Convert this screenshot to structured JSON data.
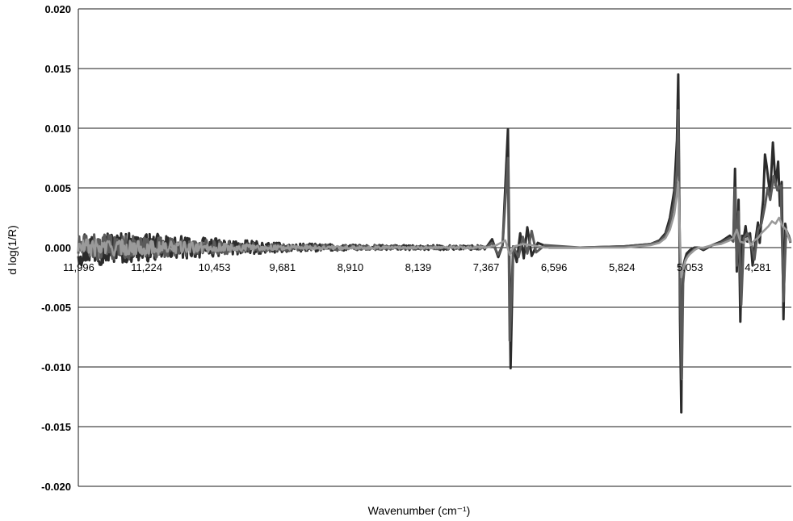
{
  "chart_data": {
    "type": "line",
    "title": "",
    "xlabel": "Wavenumber (cm⁻¹)",
    "ylabel": "d log(1/R)",
    "xlim": [
      12000,
      3900
    ],
    "ylim": [
      -0.02,
      0.02
    ],
    "x_reversed": true,
    "x_ticks": [
      "11,996",
      "11,224",
      "10,453",
      "9,681",
      "8,910",
      "8,139",
      "7,367",
      "6,596",
      "5,824",
      "5,053",
      "4,281"
    ],
    "x_tick_values": [
      11996,
      11224,
      10453,
      9681,
      8910,
      8139,
      7367,
      6596,
      5824,
      5053,
      4281
    ],
    "y_ticks": [
      "0.020",
      "0.015",
      "0.010",
      "0.005",
      "0.000",
      "-0.005",
      "-0.010",
      "-0.015",
      "-0.020"
    ],
    "y_tick_values": [
      0.02,
      0.015,
      0.01,
      0.005,
      0.0,
      -0.005,
      -0.01,
      -0.015,
      -0.02
    ],
    "grid": true,
    "legend": "none",
    "series": [
      {
        "color": "#2b2b2b",
        "noise_envelope": [
          [
            12000,
            0.0016
          ],
          [
            11200,
            0.0012
          ],
          [
            10500,
            0.0008
          ],
          [
            9700,
            0.0004
          ],
          [
            8900,
            0.00025
          ],
          [
            8100,
            0.0002
          ],
          [
            7400,
            0.0002
          ],
          [
            7000,
            0.0003
          ],
          [
            6600,
            0.0004
          ],
          [
            5800,
            0.0002
          ],
          [
            5400,
            0.0002
          ]
        ],
        "x": [
          7367,
          7300,
          7230,
          7180,
          7120,
          7090,
          7060,
          7020,
          6980,
          6940,
          6900,
          6850,
          6780,
          6650,
          6300,
          5800,
          5500,
          5400,
          5330,
          5280,
          5230,
          5200,
          5185,
          5175,
          5165,
          5150,
          5140,
          5125,
          5110,
          5090,
          5050,
          5000,
          4950,
          4900,
          4800,
          4700,
          4600,
          4560,
          4540,
          4520,
          4500,
          4480,
          4460,
          4440,
          4420,
          4400,
          4370,
          4340,
          4300,
          4280,
          4260,
          4240,
          4220,
          4200,
          4180,
          4160,
          4140,
          4110,
          4080,
          4050,
          4030,
          4010,
          3990,
          3970,
          3950,
          3930,
          3910
        ],
        "y": [
          0.0,
          0.0007,
          -0.0008,
          0.0002,
          0.0099,
          -0.0101,
          0.0001,
          -0.0012,
          0.0012,
          -0.0009,
          0.0017,
          -0.0007,
          0.0004,
          0.0,
          0.0,
          0.0001,
          0.0003,
          0.0006,
          0.0012,
          0.0025,
          0.0048,
          0.009,
          0.0145,
          0.006,
          -0.006,
          -0.0138,
          -0.004,
          -0.0015,
          -0.001,
          -0.0005,
          -0.0002,
          0.0,
          0.0,
          -0.0002,
          0.0002,
          0.0005,
          0.001,
          0.0006,
          0.0066,
          -0.002,
          0.004,
          -0.0062,
          0.001,
          0.0008,
          0.0018,
          0.0005,
          0.0012,
          -0.0015,
          0.001,
          0.0021,
          0.0004,
          0.0025,
          0.004,
          0.0078,
          0.0068,
          0.0055,
          0.0045,
          0.0088,
          0.0052,
          0.0072,
          0.0035,
          0.0055,
          -0.006,
          0.002,
          0.001,
          0.001,
          0.0005
        ]
      },
      {
        "color": "#5a5a5a",
        "noise_envelope": [
          [
            12000,
            0.0012
          ],
          [
            11200,
            0.0009
          ],
          [
            10500,
            0.0006
          ],
          [
            9700,
            0.0003
          ],
          [
            8900,
            0.0002
          ],
          [
            8100,
            0.00015
          ],
          [
            7400,
            0.00015
          ],
          [
            7000,
            0.00025
          ],
          [
            6600,
            0.0003
          ],
          [
            5800,
            0.00015
          ],
          [
            5400,
            0.00015
          ]
        ],
        "x": [
          7367,
          7300,
          7230,
          7180,
          7120,
          7100,
          7060,
          7000,
          6950,
          6900,
          6850,
          6800,
          6700,
          6300,
          5800,
          5500,
          5400,
          5330,
          5280,
          5230,
          5200,
          5185,
          5175,
          5160,
          5145,
          5130,
          5110,
          5080,
          5040,
          5000,
          4950,
          4900,
          4800,
          4700,
          4600,
          4560,
          4540,
          4520,
          4500,
          4470,
          4440,
          4400,
          4360,
          4320,
          4280,
          4240,
          4200,
          4170,
          4140,
          4100,
          4060,
          4020,
          3990,
          3960,
          3930,
          3910
        ],
        "y": [
          0.0,
          0.0004,
          -0.0006,
          0.0002,
          0.0075,
          -0.0078,
          0.0001,
          -0.0008,
          0.0009,
          -0.0005,
          0.0014,
          -0.0004,
          0.0002,
          0.0,
          0.0001,
          0.0003,
          0.0005,
          0.001,
          0.002,
          0.0038,
          0.0065,
          0.0115,
          0.0045,
          -0.0045,
          -0.011,
          -0.003,
          -0.0012,
          -0.0007,
          -0.0004,
          -0.0001,
          0.0,
          -0.0001,
          0.0002,
          0.0004,
          0.0008,
          0.0005,
          0.005,
          -0.0015,
          0.003,
          -0.0048,
          0.0008,
          0.0012,
          0.0005,
          -0.001,
          0.0015,
          0.002,
          0.0035,
          0.005,
          0.004,
          0.006,
          0.0048,
          0.0052,
          -0.0045,
          0.0015,
          0.001,
          0.0004
        ]
      },
      {
        "color": "#9a9a9a",
        "noise_envelope": [
          [
            12000,
            0.0008
          ],
          [
            11200,
            0.0006
          ],
          [
            10500,
            0.0004
          ],
          [
            9700,
            0.0002
          ],
          [
            8900,
            0.00012
          ],
          [
            8100,
            0.0001
          ],
          [
            7400,
            0.0001
          ],
          [
            7000,
            0.00015
          ],
          [
            6600,
            0.0002
          ],
          [
            5800,
            0.0001
          ],
          [
            5400,
            0.0001
          ]
        ],
        "x": [
          7367,
          7250,
          7150,
          7100,
          7050,
          6950,
          6850,
          6700,
          6300,
          5800,
          5500,
          5400,
          5330,
          5280,
          5230,
          5200,
          5185,
          5170,
          5150,
          5130,
          5100,
          5060,
          5000,
          4950,
          4900,
          4800,
          4700,
          4600,
          4560,
          4520,
          4480,
          4440,
          4400,
          4360,
          4320,
          4280,
          4240,
          4200,
          4160,
          4120,
          4080,
          4040,
          4000,
          3960,
          3930,
          3910
        ],
        "y": [
          0.0,
          0.0002,
          0.0006,
          -0.0006,
          0.0001,
          0.0003,
          0.0002,
          0.0,
          0.0,
          0.0,
          0.0002,
          0.0004,
          0.0008,
          0.0015,
          0.0028,
          0.0045,
          0.0055,
          0.002,
          -0.0025,
          -0.0018,
          -0.001,
          -0.0006,
          -0.0002,
          0.0,
          0.0,
          0.0002,
          0.0003,
          0.0006,
          0.0008,
          0.0015,
          0.0005,
          0.0004,
          0.0008,
          0.0002,
          0.0006,
          0.0008,
          0.0012,
          0.0015,
          0.0018,
          0.0022,
          0.002,
          0.0025,
          0.0018,
          0.0015,
          0.0008,
          0.0005
        ]
      }
    ]
  }
}
